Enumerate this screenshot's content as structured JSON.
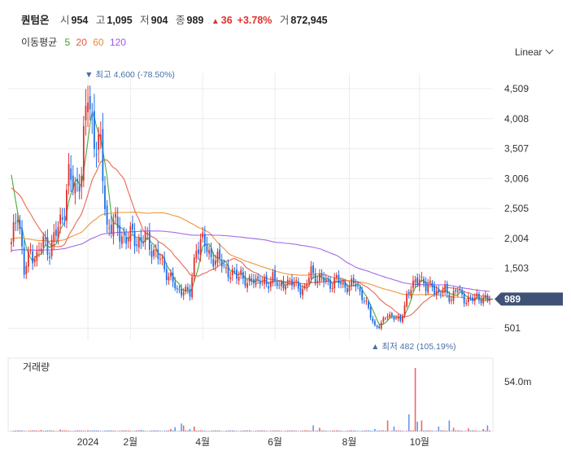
{
  "header": {
    "name": "퀀텀온",
    "open_label": "시",
    "open": "954",
    "high_label": "고",
    "high": "1,095",
    "low_label": "저",
    "low": "904",
    "close_label": "종",
    "close": "989",
    "change_arrow": "▲",
    "change": "36",
    "change_pct": "+3.78%",
    "volume_label": "거",
    "volume": "872,945"
  },
  "ma_legend": {
    "title": "이동평균",
    "periods": [
      {
        "label": "5",
        "color": "#33a02c"
      },
      {
        "label": "20",
        "color": "#e8573e"
      },
      {
        "label": "60",
        "color": "#ef8a2b"
      },
      {
        "label": "120",
        "color": "#9b59e6"
      }
    ]
  },
  "scale_label": "Linear",
  "volume_panel_label": "거래량",
  "colors": {
    "up": "#e0322e",
    "down": "#1d6ee8",
    "price_tag": "#3f5176",
    "grid": "#ececec"
  },
  "chart_data": {
    "type": "candlestick",
    "y_axis_ticks": [
      "4,509",
      "4,008",
      "3,507",
      "3,006",
      "2,505",
      "2,004",
      "1,503",
      "501"
    ],
    "y_range": [
      300,
      4700
    ],
    "current_price": "989",
    "current_price_value": 989,
    "high_annotation": {
      "arrow": "▼",
      "label": "최고",
      "value": "4,600",
      "pct": "(-78.50%)",
      "x_index": 36
    },
    "low_annotation": {
      "arrow": "▲",
      "label": "최저",
      "value": "482",
      "pct": "(105.19%)",
      "x_index": 173
    },
    "x_axis_ticks": [
      {
        "label": "2024",
        "index": 36
      },
      {
        "label": "2월",
        "index": 56
      },
      {
        "label": "4월",
        "index": 90
      },
      {
        "label": "6월",
        "index": 124
      },
      {
        "label": "8월",
        "index": 159
      },
      {
        "label": "10월",
        "index": 192
      }
    ],
    "volume_axis_label": "54.0m",
    "volume_max": 60,
    "series": [
      {
        "name": "5",
        "color": "#33a02c"
      },
      {
        "name": "20",
        "color": "#e8573e"
      },
      {
        "name": "60",
        "color": "#ef8a2b"
      },
      {
        "name": "120",
        "color": "#9b59e6"
      }
    ],
    "close_points": [
      [
        0,
        1870
      ],
      [
        3,
        2550
      ],
      [
        6,
        1420
      ],
      [
        9,
        1780
      ],
      [
        12,
        1700
      ],
      [
        15,
        1950
      ],
      [
        18,
        1820
      ],
      [
        21,
        2080
      ],
      [
        24,
        2400
      ],
      [
        27,
        3000
      ],
      [
        30,
        2850
      ],
      [
        33,
        3150
      ],
      [
        36,
        4450
      ],
      [
        39,
        3700
      ],
      [
        42,
        3450
      ],
      [
        45,
        2200
      ],
      [
        48,
        2250
      ],
      [
        51,
        2100
      ],
      [
        54,
        2000
      ],
      [
        57,
        2050
      ],
      [
        60,
        1950
      ],
      [
        63,
        2000
      ],
      [
        66,
        1850
      ],
      [
        69,
        1700
      ],
      [
        72,
        1500
      ],
      [
        75,
        1350
      ],
      [
        78,
        1100
      ],
      [
        81,
        1180
      ],
      [
        84,
        1050
      ],
      [
        87,
        1900
      ],
      [
        90,
        1950
      ],
      [
        93,
        1750
      ],
      [
        96,
        1650
      ],
      [
        99,
        1600
      ],
      [
        102,
        1450
      ],
      [
        105,
        1350
      ],
      [
        108,
        1450
      ],
      [
        111,
        1200
      ],
      [
        114,
        1350
      ],
      [
        117,
        1300
      ],
      [
        120,
        1200
      ],
      [
        123,
        1400
      ],
      [
        126,
        1150
      ],
      [
        129,
        1300
      ],
      [
        132,
        1250
      ],
      [
        135,
        1200
      ],
      [
        138,
        1150
      ],
      [
        141,
        1450
      ],
      [
        144,
        1350
      ],
      [
        147,
        1300
      ],
      [
        150,
        1250
      ],
      [
        153,
        1300
      ],
      [
        156,
        1230
      ],
      [
        159,
        1200
      ],
      [
        162,
        1250
      ],
      [
        165,
        1050
      ],
      [
        168,
        800
      ],
      [
        171,
        540
      ],
      [
        174,
        560
      ],
      [
        177,
        750
      ],
      [
        180,
        680
      ],
      [
        183,
        620
      ],
      [
        186,
        1050
      ],
      [
        189,
        1200
      ],
      [
        192,
        1400
      ],
      [
        195,
        1150
      ],
      [
        198,
        1250
      ],
      [
        201,
        1050
      ],
      [
        204,
        1150
      ],
      [
        207,
        1000
      ],
      [
        210,
        1150
      ],
      [
        213,
        1000
      ],
      [
        216,
        950
      ],
      [
        219,
        1050
      ],
      [
        222,
        980
      ],
      [
        225,
        950
      ]
    ],
    "volume_spikes": [
      [
        14,
        1.2
      ],
      [
        23,
        1.5
      ],
      [
        36,
        1.0
      ],
      [
        61,
        1.2
      ],
      [
        75,
        2.0
      ],
      [
        77,
        3.5
      ],
      [
        80,
        6.5
      ],
      [
        81,
        5.0
      ],
      [
        84,
        2.0
      ],
      [
        86,
        4.0
      ],
      [
        112,
        1.0
      ],
      [
        142,
        5.0
      ],
      [
        145,
        3.0
      ],
      [
        171,
        2.0
      ],
      [
        177,
        9.0
      ],
      [
        180,
        4.0
      ],
      [
        187,
        14.0
      ],
      [
        190,
        52.0
      ],
      [
        191,
        8.0
      ],
      [
        193,
        9.0
      ],
      [
        201,
        4.0
      ],
      [
        206,
        9.0
      ],
      [
        208,
        3.0
      ],
      [
        215,
        2.5
      ],
      [
        222,
        2.0
      ],
      [
        224,
        5.0
      ]
    ]
  }
}
